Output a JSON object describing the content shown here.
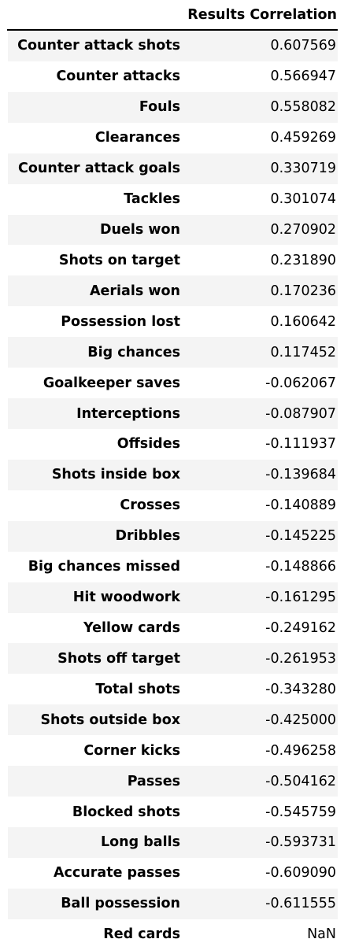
{
  "table": {
    "column_header": "Results Correlation",
    "rows": [
      {
        "label": "Counter attack shots",
        "value": "0.607569"
      },
      {
        "label": "Counter attacks",
        "value": "0.566947"
      },
      {
        "label": "Fouls",
        "value": "0.558082"
      },
      {
        "label": "Clearances",
        "value": "0.459269"
      },
      {
        "label": "Counter attack goals",
        "value": "0.330719"
      },
      {
        "label": "Tackles",
        "value": "0.301074"
      },
      {
        "label": "Duels won",
        "value": "0.270902"
      },
      {
        "label": "Shots on target",
        "value": "0.231890"
      },
      {
        "label": "Aerials won",
        "value": "0.170236"
      },
      {
        "label": "Possession lost",
        "value": "0.160642"
      },
      {
        "label": "Big chances",
        "value": "0.117452"
      },
      {
        "label": "Goalkeeper saves",
        "value": "-0.062067"
      },
      {
        "label": "Interceptions",
        "value": "-0.087907"
      },
      {
        "label": "Offsides",
        "value": "-0.111937"
      },
      {
        "label": "Shots inside box",
        "value": "-0.139684"
      },
      {
        "label": "Crosses",
        "value": "-0.140889"
      },
      {
        "label": "Dribbles",
        "value": "-0.145225"
      },
      {
        "label": "Big chances missed",
        "value": "-0.148866"
      },
      {
        "label": "Hit woodwork",
        "value": "-0.161295"
      },
      {
        "label": "Yellow cards",
        "value": "-0.249162"
      },
      {
        "label": "Shots off target",
        "value": "-0.261953"
      },
      {
        "label": "Total shots",
        "value": "-0.343280"
      },
      {
        "label": "Shots outside box",
        "value": "-0.425000"
      },
      {
        "label": "Corner kicks",
        "value": "-0.496258"
      },
      {
        "label": "Passes",
        "value": "-0.504162"
      },
      {
        "label": "Blocked shots",
        "value": "-0.545759"
      },
      {
        "label": "Long balls",
        "value": "-0.593731"
      },
      {
        "label": "Accurate passes",
        "value": "-0.609090"
      },
      {
        "label": "Ball possession",
        "value": "-0.611555"
      },
      {
        "label": "Red cards",
        "value": "NaN"
      }
    ],
    "stripe_color": "#f4f4f4"
  }
}
